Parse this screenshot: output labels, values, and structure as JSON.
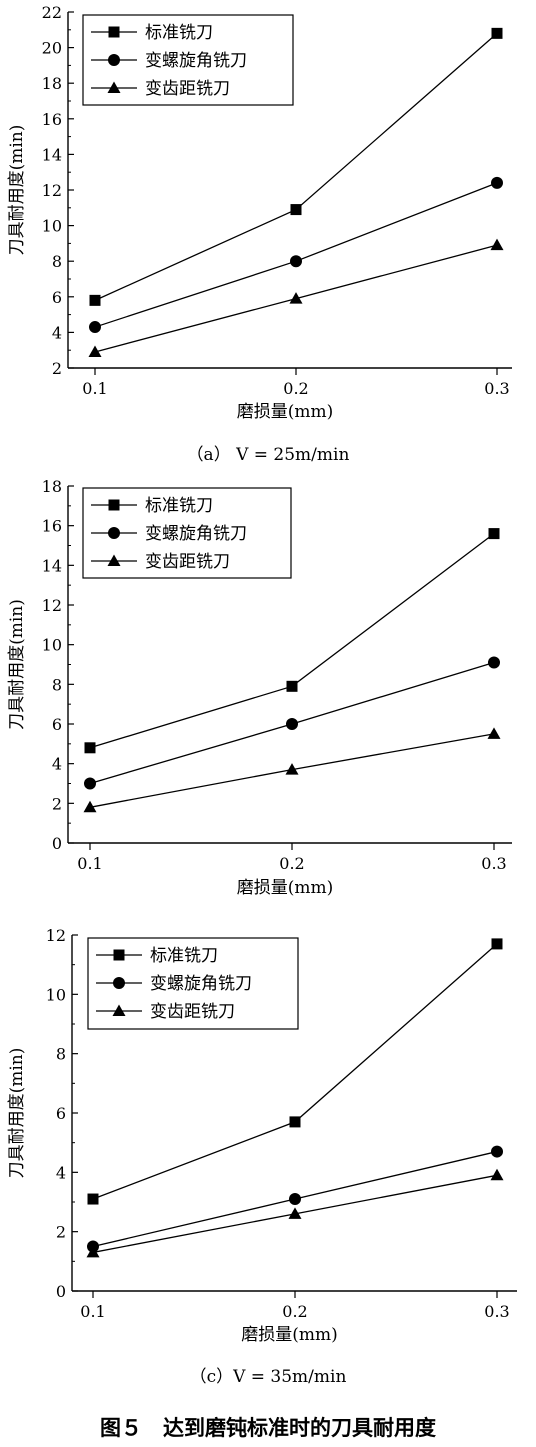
{
  "figure_caption": "图５　达到磨钝标准时的刀具耐用度",
  "chart_data": [
    {
      "type": "line",
      "caption": "（a）  V = 25m/min",
      "xlabel": "磨损量(mm)",
      "ylabel": "刀具耐用度(min)",
      "categories": [
        0.1,
        0.2,
        0.3
      ],
      "xticklabels": [
        "0.1",
        "0.2",
        "0.3"
      ],
      "ylim": [
        2,
        22
      ],
      "yticks": [
        2,
        4,
        6,
        8,
        10,
        12,
        14,
        16,
        18,
        20,
        22
      ],
      "legend_position": "top-left",
      "series": [
        {
          "name": "标准铣刀",
          "marker": "square",
          "values": [
            5.8,
            10.9,
            20.8
          ]
        },
        {
          "name": "变螺旋角铣刀",
          "marker": "circle",
          "values": [
            4.3,
            8.0,
            12.4
          ]
        },
        {
          "name": "变齿距铣刀",
          "marker": "triangle",
          "values": [
            2.9,
            5.9,
            8.9
          ]
        }
      ]
    },
    {
      "type": "line",
      "caption": "",
      "xlabel": "磨损量(mm)",
      "ylabel": "刀具耐用度(min)",
      "categories": [
        0.1,
        0.2,
        0.3
      ],
      "xticklabels": [
        "0.1",
        "0.2",
        "0.3"
      ],
      "ylim": [
        0,
        18
      ],
      "yticks": [
        0,
        2,
        4,
        6,
        8,
        10,
        12,
        14,
        16,
        18
      ],
      "legend_position": "top-left",
      "series": [
        {
          "name": "标准铣刀",
          "marker": "square",
          "values": [
            4.8,
            7.9,
            15.6
          ]
        },
        {
          "name": "变螺旋角铣刀",
          "marker": "circle",
          "values": [
            3.0,
            6.0,
            9.1
          ]
        },
        {
          "name": "变齿距铣刀",
          "marker": "triangle",
          "values": [
            1.8,
            3.7,
            5.5
          ]
        }
      ]
    },
    {
      "type": "line",
      "caption": "（c）V = 35m/min",
      "xlabel": "磨损量(mm)",
      "ylabel": "刀具耐用度(min)",
      "categories": [
        0.1,
        0.2,
        0.3
      ],
      "xticklabels": [
        "0.1",
        "0.2",
        "0.3"
      ],
      "ylim": [
        0,
        12
      ],
      "yticks": [
        0,
        2,
        4,
        6,
        8,
        10,
        12
      ],
      "legend_position": "top-left",
      "series": [
        {
          "name": "标准铣刀",
          "marker": "square",
          "values": [
            3.1,
            5.7,
            11.7
          ]
        },
        {
          "name": "变螺旋角铣刀",
          "marker": "circle",
          "values": [
            1.5,
            3.1,
            4.7
          ]
        },
        {
          "name": "变齿距铣刀",
          "marker": "triangle",
          "values": [
            1.3,
            2.6,
            3.9
          ]
        }
      ]
    }
  ]
}
